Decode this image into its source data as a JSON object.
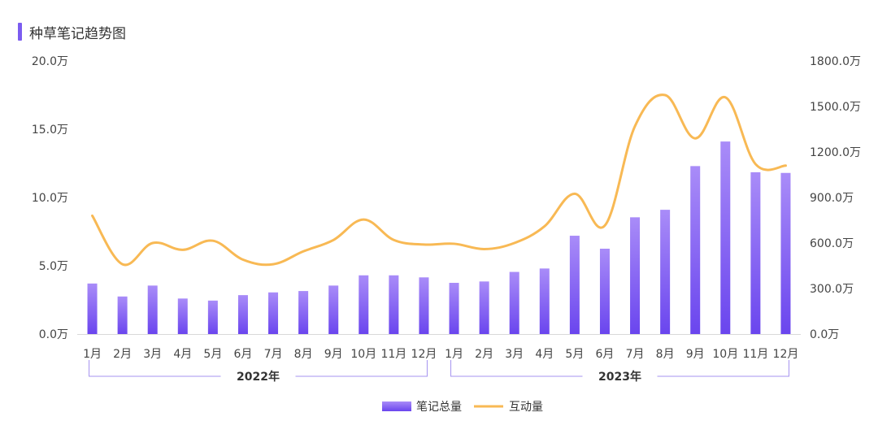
{
  "chart_data": {
    "type": "bar",
    "title": "种草笔记趋势图",
    "categories": [
      "1月",
      "2月",
      "3月",
      "4月",
      "5月",
      "6月",
      "7月",
      "8月",
      "9月",
      "10月",
      "11月",
      "12月",
      "1月",
      "2月",
      "3月",
      "4月",
      "5月",
      "6月",
      "7月",
      "8月",
      "9月",
      "10月",
      "11月",
      "12月"
    ],
    "groups": [
      {
        "label": "2022年",
        "start": 0,
        "end": 11
      },
      {
        "label": "2023年",
        "start": 12,
        "end": 23
      }
    ],
    "series": [
      {
        "name": "笔记总量",
        "type": "bar",
        "axis": "left",
        "values": [
          3.7,
          2.75,
          3.55,
          2.6,
          2.45,
          2.85,
          3.05,
          3.15,
          3.55,
          4.3,
          4.3,
          4.15,
          3.75,
          3.85,
          4.55,
          4.8,
          7.2,
          6.25,
          8.55,
          9.1,
          12.3,
          14.1,
          11.85,
          11.8
        ]
      },
      {
        "name": "互动量",
        "type": "line",
        "axis": "right",
        "smooth": true,
        "values": [
          780,
          460,
          600,
          555,
          615,
          490,
          460,
          545,
          620,
          755,
          620,
          590,
          595,
          560,
          600,
          710,
          925,
          715,
          1370,
          1575,
          1290,
          1560,
          1120,
          1110
        ]
      }
    ],
    "y_left": {
      "min": 0,
      "max": 20,
      "ticks": [
        "0.0万",
        "5.0万",
        "10.0万",
        "15.0万",
        "20.0万"
      ],
      "tick_values": [
        0,
        5,
        10,
        15,
        20
      ]
    },
    "y_right": {
      "min": 0,
      "max": 1800,
      "ticks": [
        "0.0万",
        "300.0万",
        "600.0万",
        "900.0万",
        "1200.0万",
        "1500.0万",
        "1800.0万"
      ],
      "tick_values": [
        0,
        300,
        600,
        900,
        1200,
        1500,
        1800
      ]
    },
    "grid": false,
    "legend_position": "bottom-center"
  },
  "colors": {
    "bar_top": "#a98cf8",
    "bar_bottom": "#6a45ee",
    "line": "#f8b954",
    "title_accent": "#7b5cf0",
    "bracket": "#a593f0",
    "axis": "#d9d9d9"
  }
}
